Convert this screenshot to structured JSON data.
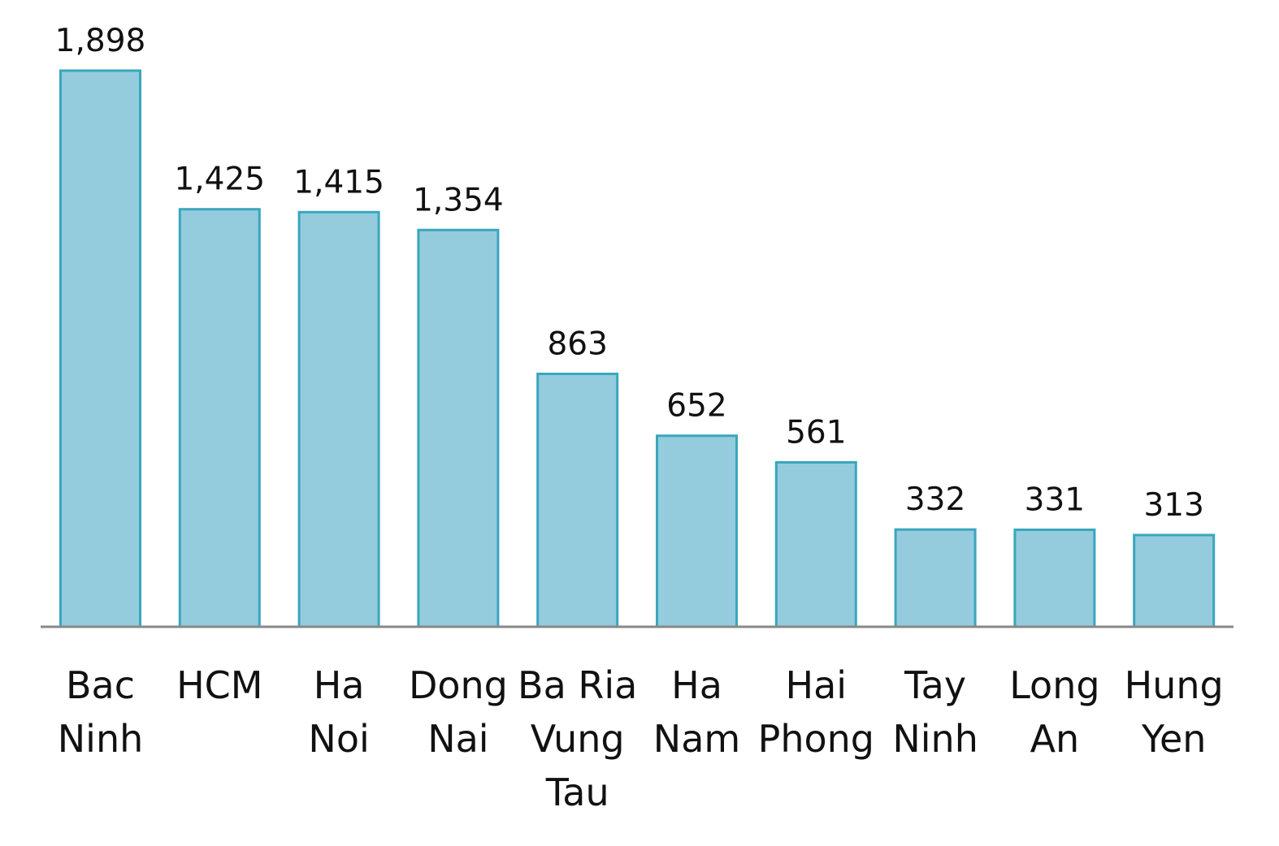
{
  "chart_data": {
    "type": "bar",
    "categories": [
      [
        "Bac",
        "Ninh"
      ],
      [
        "HCM"
      ],
      [
        "Ha",
        "Noi"
      ],
      [
        "Dong",
        "Nai"
      ],
      [
        "Ba Ria",
        "Vung",
        "Tau"
      ],
      [
        "Ha",
        "Nam"
      ],
      [
        "Hai",
        "Phong"
      ],
      [
        "Tay",
        "Ninh"
      ],
      [
        "Long",
        "An"
      ],
      [
        "Hung",
        "Yen"
      ]
    ],
    "values": [
      1898,
      1425,
      1415,
      1354,
      863,
      652,
      561,
      332,
      331,
      313
    ],
    "value_labels": [
      "1,898",
      "1,425",
      "1,415",
      "1,354",
      "863",
      "652",
      "561",
      "332",
      "331",
      "313"
    ],
    "title": "",
    "xlabel": "",
    "ylabel": "",
    "ylim": [
      0,
      1898
    ],
    "grid": false,
    "legend": "none",
    "colors": {
      "bar_fill": "#94ccdd",
      "bar_stroke": "#3aa6bd",
      "axis": "#888888",
      "text": "#111111"
    }
  }
}
